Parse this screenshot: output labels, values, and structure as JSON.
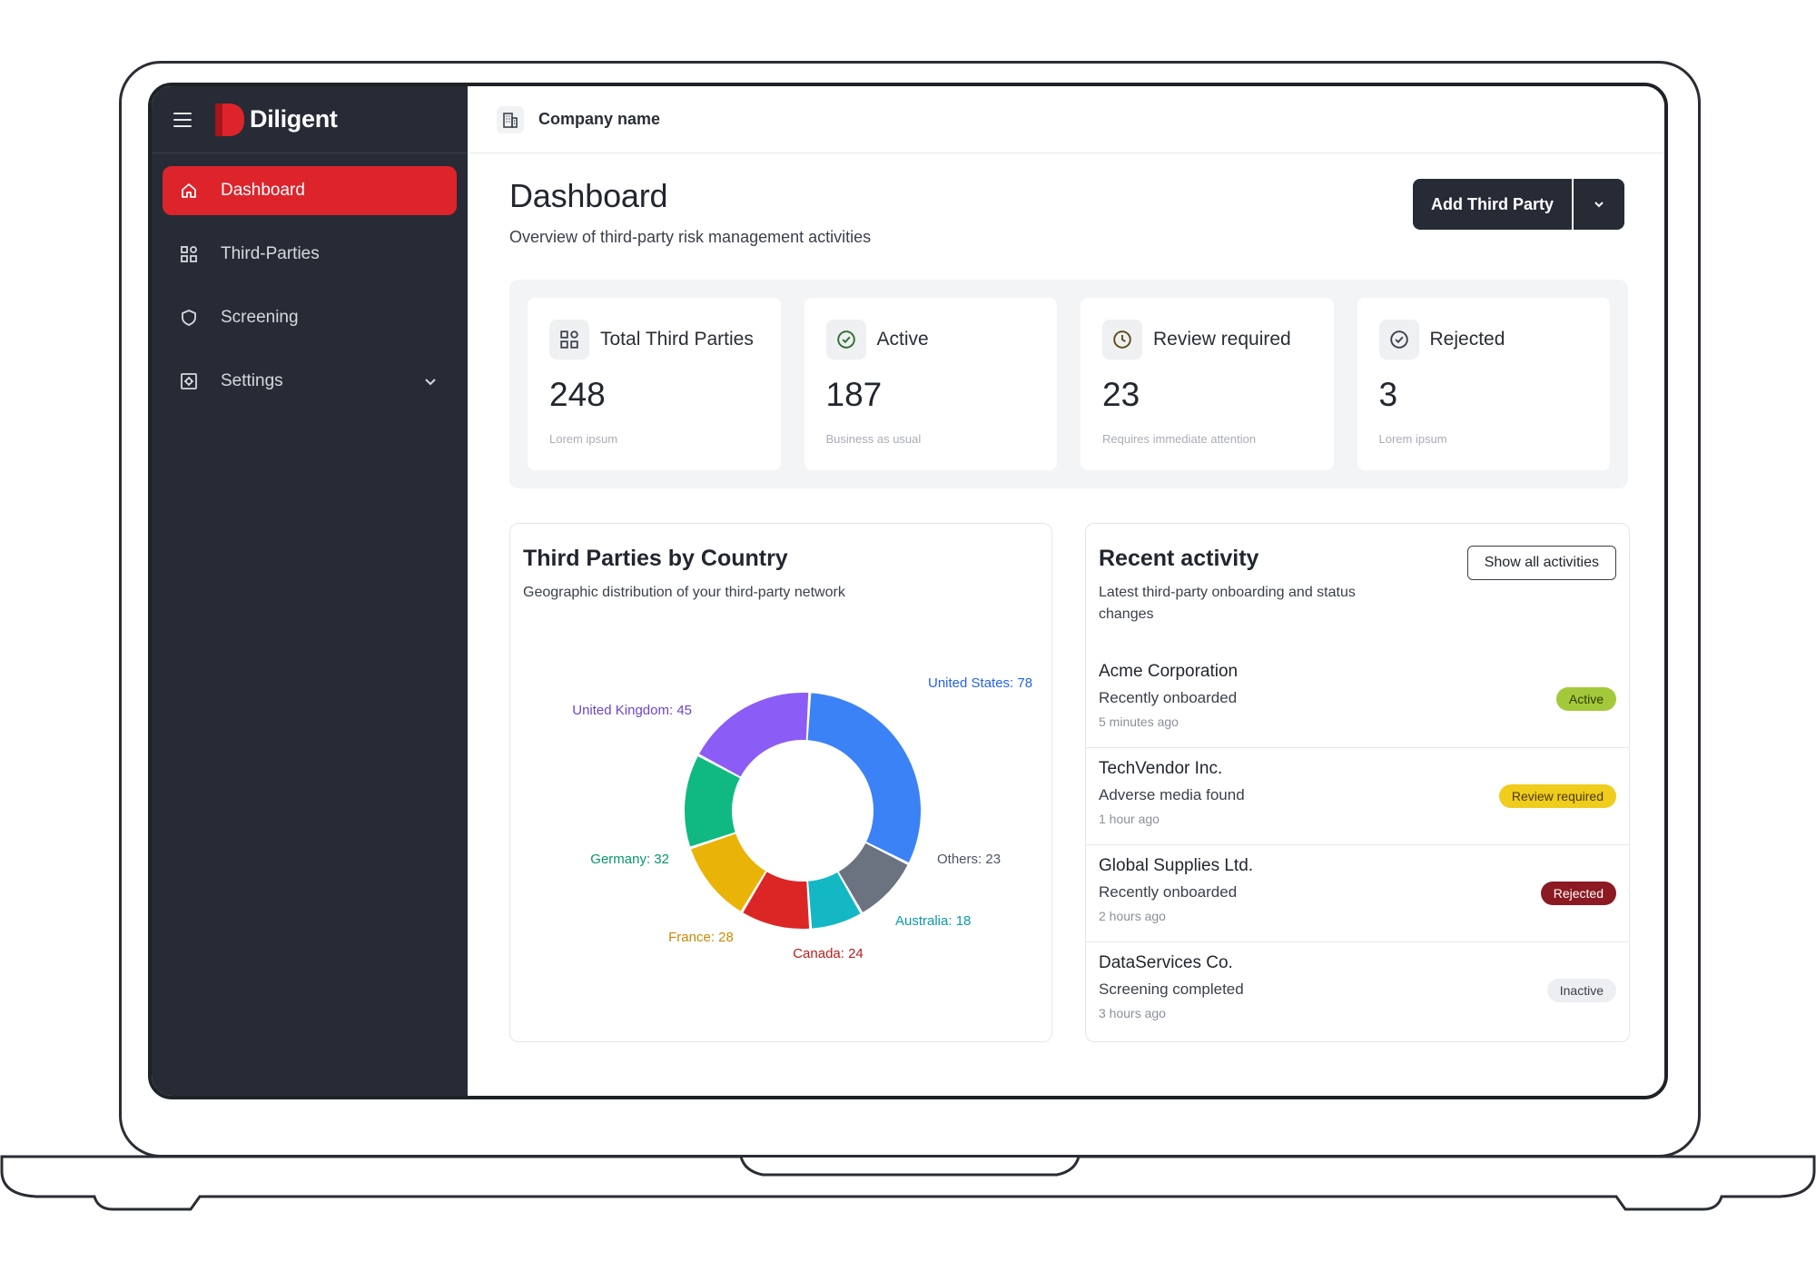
{
  "brand": {
    "name": "Diligent",
    "accent": "#de242b",
    "sidebar_bg": "#262b35"
  },
  "topbar": {
    "company": "Company name"
  },
  "sidebar": {
    "items": [
      {
        "label": "Dashboard",
        "icon": "home-icon",
        "active": true
      },
      {
        "label": "Third-Parties",
        "icon": "grid-icon",
        "active": false
      },
      {
        "label": "Screening",
        "icon": "shield-icon",
        "active": false
      },
      {
        "label": "Settings",
        "icon": "settings-icon",
        "active": false
      }
    ]
  },
  "header": {
    "title": "Dashboard",
    "subtitle": "Overview of third-party risk management activities",
    "add_button": "Add Third Party"
  },
  "kpis": [
    {
      "label": "Total Third Parties",
      "value": "248",
      "note": "Lorem ipsum",
      "icon": "grid-icon"
    },
    {
      "label": "Active",
      "value": "187",
      "note": "Business as usual",
      "icon": "check-circle-icon"
    },
    {
      "label": "Review required",
      "value": "23",
      "note": "Requires immediate attention",
      "icon": "clock-icon"
    },
    {
      "label": "Rejected",
      "value": "3",
      "note": "Lorem ipsum",
      "icon": "check-circle-icon"
    }
  ],
  "country_chart": {
    "title": "Third Parties by Country",
    "subtitle": "Geographic distribution of your third-party network"
  },
  "chart_data": {
    "type": "pie",
    "donut": true,
    "categories": [
      "United States",
      "Others",
      "Australia",
      "Canada",
      "France",
      "Germany",
      "United Kingdom"
    ],
    "values": [
      78,
      23,
      18,
      24,
      28,
      32,
      45
    ],
    "labels": [
      "United States: 78",
      "Others: 23",
      "Australia: 18",
      "Canada: 24",
      "France: 28",
      "Germany: 32",
      "United Kingdom: 45"
    ],
    "colors": [
      "#3b82f6",
      "#6b7280",
      "#14b8c4",
      "#dc2626",
      "#eab308",
      "#10b981",
      "#8b5cf6"
    ],
    "label_colors": [
      "#2563eb",
      "#4b5563",
      "#0d9aa8",
      "#b91c1c",
      "#ca8a04",
      "#059669",
      "#6d44c9"
    ]
  },
  "activity": {
    "title": "Recent activity",
    "subtitle": "Latest third-party onboarding and status changes",
    "show_all": "Show all activities",
    "items": [
      {
        "name": "Acme Corporation",
        "desc": "Recently onboarded",
        "time": "5 minutes ago",
        "status": "Active",
        "badge_bg": "#a3c93a",
        "badge_fg": "#2f3b08"
      },
      {
        "name": "TechVendor Inc.",
        "desc": "Adverse media found",
        "time": "1 hour ago",
        "status": "Review required",
        "badge_bg": "#f0cc1c",
        "badge_fg": "#4a3a00"
      },
      {
        "name": "Global Supplies Ltd.",
        "desc": "Recently onboarded",
        "time": "2 hours ago",
        "status": "Rejected",
        "badge_bg": "#8b1a22",
        "badge_fg": "#ffffff"
      },
      {
        "name": "DataServices Co.",
        "desc": "Screening completed",
        "time": "3 hours ago",
        "status": "Inactive",
        "badge_bg": "#eceef1",
        "badge_fg": "#3b404a"
      }
    ]
  }
}
